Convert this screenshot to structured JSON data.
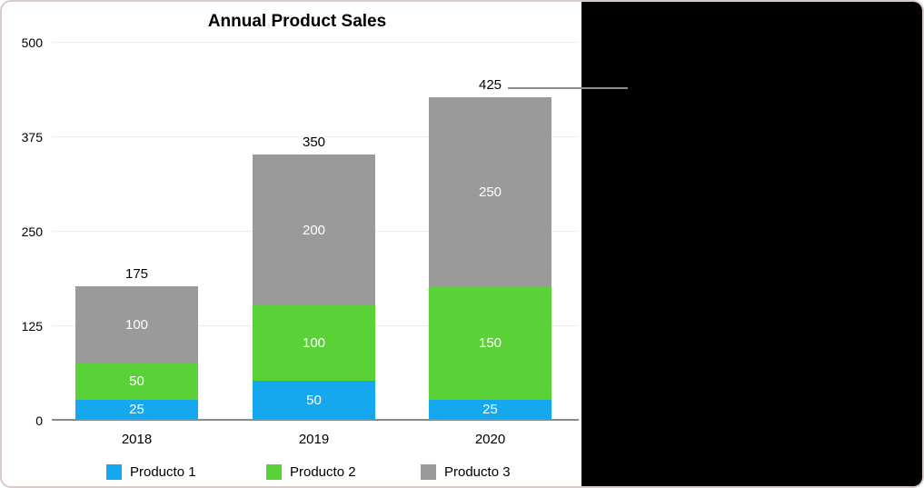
{
  "chart_data": {
    "type": "bar",
    "stacked": true,
    "title": "Annual Product Sales",
    "categories": [
      "2018",
      "2019",
      "2020"
    ],
    "series": [
      {
        "name": "Producto 1",
        "color": "#16a8ee",
        "values": [
          25,
          50,
          25
        ]
      },
      {
        "name": "Producto 2",
        "color": "#5ad136",
        "values": [
          50,
          100,
          150
        ]
      },
      {
        "name": "Producto 3",
        "color": "#9a9a9a",
        "values": [
          100,
          200,
          250
        ]
      }
    ],
    "totals": [
      175,
      350,
      425
    ],
    "yticks": [
      0,
      125,
      250,
      375,
      500
    ],
    "ylim": [
      0,
      500
    ],
    "xlabel": "",
    "ylabel": "",
    "grid": true,
    "legend_position": "bottom"
  },
  "callout": {
    "target_label": "425",
    "line_color": "#8c8c8c"
  },
  "colors": {
    "chart_background": "#ffffff",
    "side_panel_background": "#000000",
    "frame_border": "#d8caca",
    "axis_line": "#8a8a8a",
    "grid_line": "#ececec"
  }
}
